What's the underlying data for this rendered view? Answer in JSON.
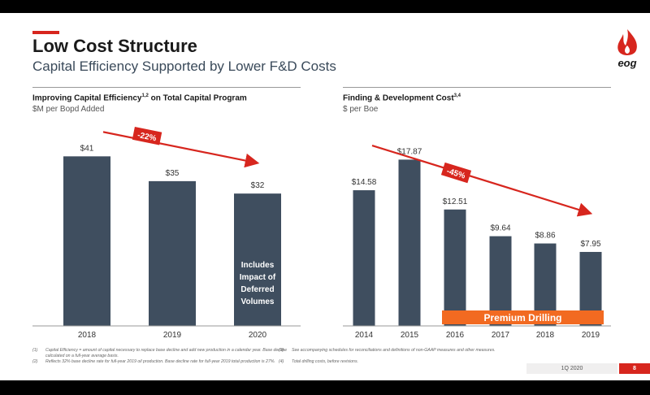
{
  "header": {
    "title": "Low Cost Structure",
    "subtitle": "Capital Efficiency Supported by Lower F&D Costs",
    "logo_text": "eog"
  },
  "colors": {
    "bar": "#3f4e5f",
    "accent": "#d7261e",
    "premium": "#f26a21"
  },
  "chart_data": [
    {
      "type": "bar",
      "title": "Improving Capital Efficiency",
      "title_sup": "1,2",
      "title_suffix": " on Total Capital Program",
      "ylabel": "$M per Bopd Added",
      "categories": [
        "2018",
        "2019",
        "2020"
      ],
      "values": [
        41,
        35,
        32
      ],
      "data_labels": [
        "$41",
        "$35",
        "$32"
      ],
      "ylim": [
        0,
        45
      ],
      "annotation": "-22%",
      "bar_note": [
        "Includes",
        "Impact of",
        "Deferred",
        "Volumes"
      ],
      "grid": false
    },
    {
      "type": "bar",
      "title": "Finding & Development Cost",
      "title_sup": "3,4",
      "title_suffix": "",
      "ylabel": "$ per Boe",
      "categories": [
        "2014",
        "2015",
        "2016",
        "2017",
        "2018",
        "2019"
      ],
      "values": [
        14.58,
        17.87,
        12.51,
        9.64,
        8.86,
        7.95
      ],
      "data_labels": [
        "$14.58",
        "$17.87",
        "$12.51",
        "$9.64",
        "$8.86",
        "$7.95"
      ],
      "ylim": [
        0,
        20
      ],
      "annotation": "-45%",
      "band_label": "Premium Drilling",
      "grid": false
    }
  ],
  "footnotes": [
    {
      "num": "(1)",
      "text": "Capital Efficiency = amount of capital necessary to replace base decline and add new production in a calendar year.  Base decline calculated on a full-year average basis."
    },
    {
      "num": "(2)",
      "text": "Reflects 32% base decline rate for full-year 2019 oil production. Base decline rate for full-year 2019 total production is 27%."
    },
    {
      "num": "(3)",
      "text": "See accompanying schedules for reconciliations and definitions of non-GAAP measures and other measures."
    },
    {
      "num": "(4)",
      "text": "Total drilling costs, before revisions."
    }
  ],
  "footer": {
    "period": "1Q 2020",
    "page": "8"
  }
}
